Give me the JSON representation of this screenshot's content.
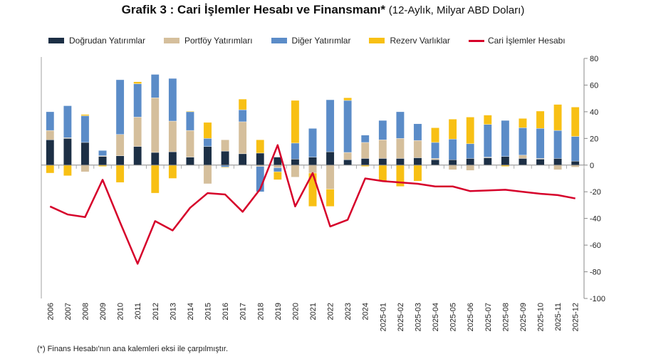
{
  "title": {
    "bold": "Grafik 3 : Cari İşlemler Hesabı ve Finansmanı*",
    "sub": "(12-Aylık, Milyar ABD Doları)"
  },
  "footnote": "(*) Finans Hesabı'nın ana kalemleri eksi ile çarpılmıştır.",
  "chart_data": {
    "type": "bar",
    "stacked": true,
    "categories": [
      "2006",
      "2007",
      "2008",
      "2009",
      "2010",
      "2011",
      "2012",
      "2013",
      "2014",
      "2015",
      "2016",
      "2017",
      "2018",
      "2019",
      "2020",
      "2021",
      "2022",
      "2023",
      "2024",
      "2025-01",
      "2025-02",
      "2025-03",
      "2025-04",
      "2025-05",
      "2025-06",
      "2025-07",
      "2025-08",
      "2025-09",
      "2025-10",
      "2025-11",
      "2025-12"
    ],
    "series": [
      {
        "name": "Doğrudan Yatırımlar",
        "kind": "bar",
        "color": "#1c2f45",
        "values": [
          19,
          20,
          17,
          6.5,
          7,
          14,
          9.5,
          10,
          6,
          14,
          10.5,
          8.5,
          9,
          6,
          4.5,
          6,
          10,
          4,
          5,
          5,
          5,
          5.5,
          4,
          4,
          5,
          5.5,
          6.5,
          5,
          4.5,
          5,
          3
        ]
      },
      {
        "name": "Portföy Yatırımları",
        "kind": "bar",
        "color": "#d5bf9c",
        "values": [
          7,
          0.5,
          -5,
          0.5,
          16,
          22,
          41,
          23,
          20,
          -14,
          8.5,
          24,
          -1,
          -2,
          -9,
          -6,
          -18,
          5.5,
          12,
          14,
          15,
          13,
          1,
          -3.5,
          -4,
          0.5,
          0,
          2.5,
          0.5,
          -3.5,
          -1.5
        ]
      },
      {
        "name": "Diğer Yatırımlar",
        "kind": "bar",
        "color": "#5b8cc8",
        "values": [
          14,
          24,
          20,
          4,
          41,
          25,
          17.5,
          32,
          14,
          6,
          -1.5,
          9,
          -19,
          -3,
          12,
          21.5,
          39,
          39,
          5.5,
          14.5,
          20,
          12.5,
          12,
          15.5,
          11,
          24.5,
          27,
          20.5,
          22.5,
          21,
          18.5
        ]
      },
      {
        "name": "Rezerv Varlıklar",
        "kind": "bar",
        "color": "#f8c014",
        "values": [
          -6,
          -8,
          1,
          -1,
          -13,
          1.5,
          -21,
          -10,
          0.5,
          12,
          -0.5,
          8,
          10,
          -6,
          32,
          -25,
          -13,
          2,
          -1,
          -12,
          -16,
          -12,
          11,
          15,
          20,
          7,
          -1,
          7,
          13,
          19.5,
          22
        ]
      },
      {
        "name": "Cari İşlemler Hesabı",
        "kind": "line",
        "color": "#d6002a",
        "values": [
          -31,
          -37,
          -39,
          -11,
          -43,
          -74,
          -42,
          -49,
          -32,
          -21,
          -22,
          -35,
          -18,
          15,
          -31,
          -6,
          -46,
          -41,
          -10,
          -12,
          -13,
          -14,
          -16,
          -16,
          -19.5,
          -19,
          -18.5,
          -20,
          -21.5,
          -22.5,
          -25
        ]
      }
    ],
    "y_axis": {
      "position": "right",
      "ylim": [
        -100,
        80
      ],
      "ticks": [
        80,
        60,
        40,
        20,
        0,
        -20,
        -40,
        -60,
        -80,
        -100
      ]
    },
    "legend": "top",
    "grid": false
  }
}
